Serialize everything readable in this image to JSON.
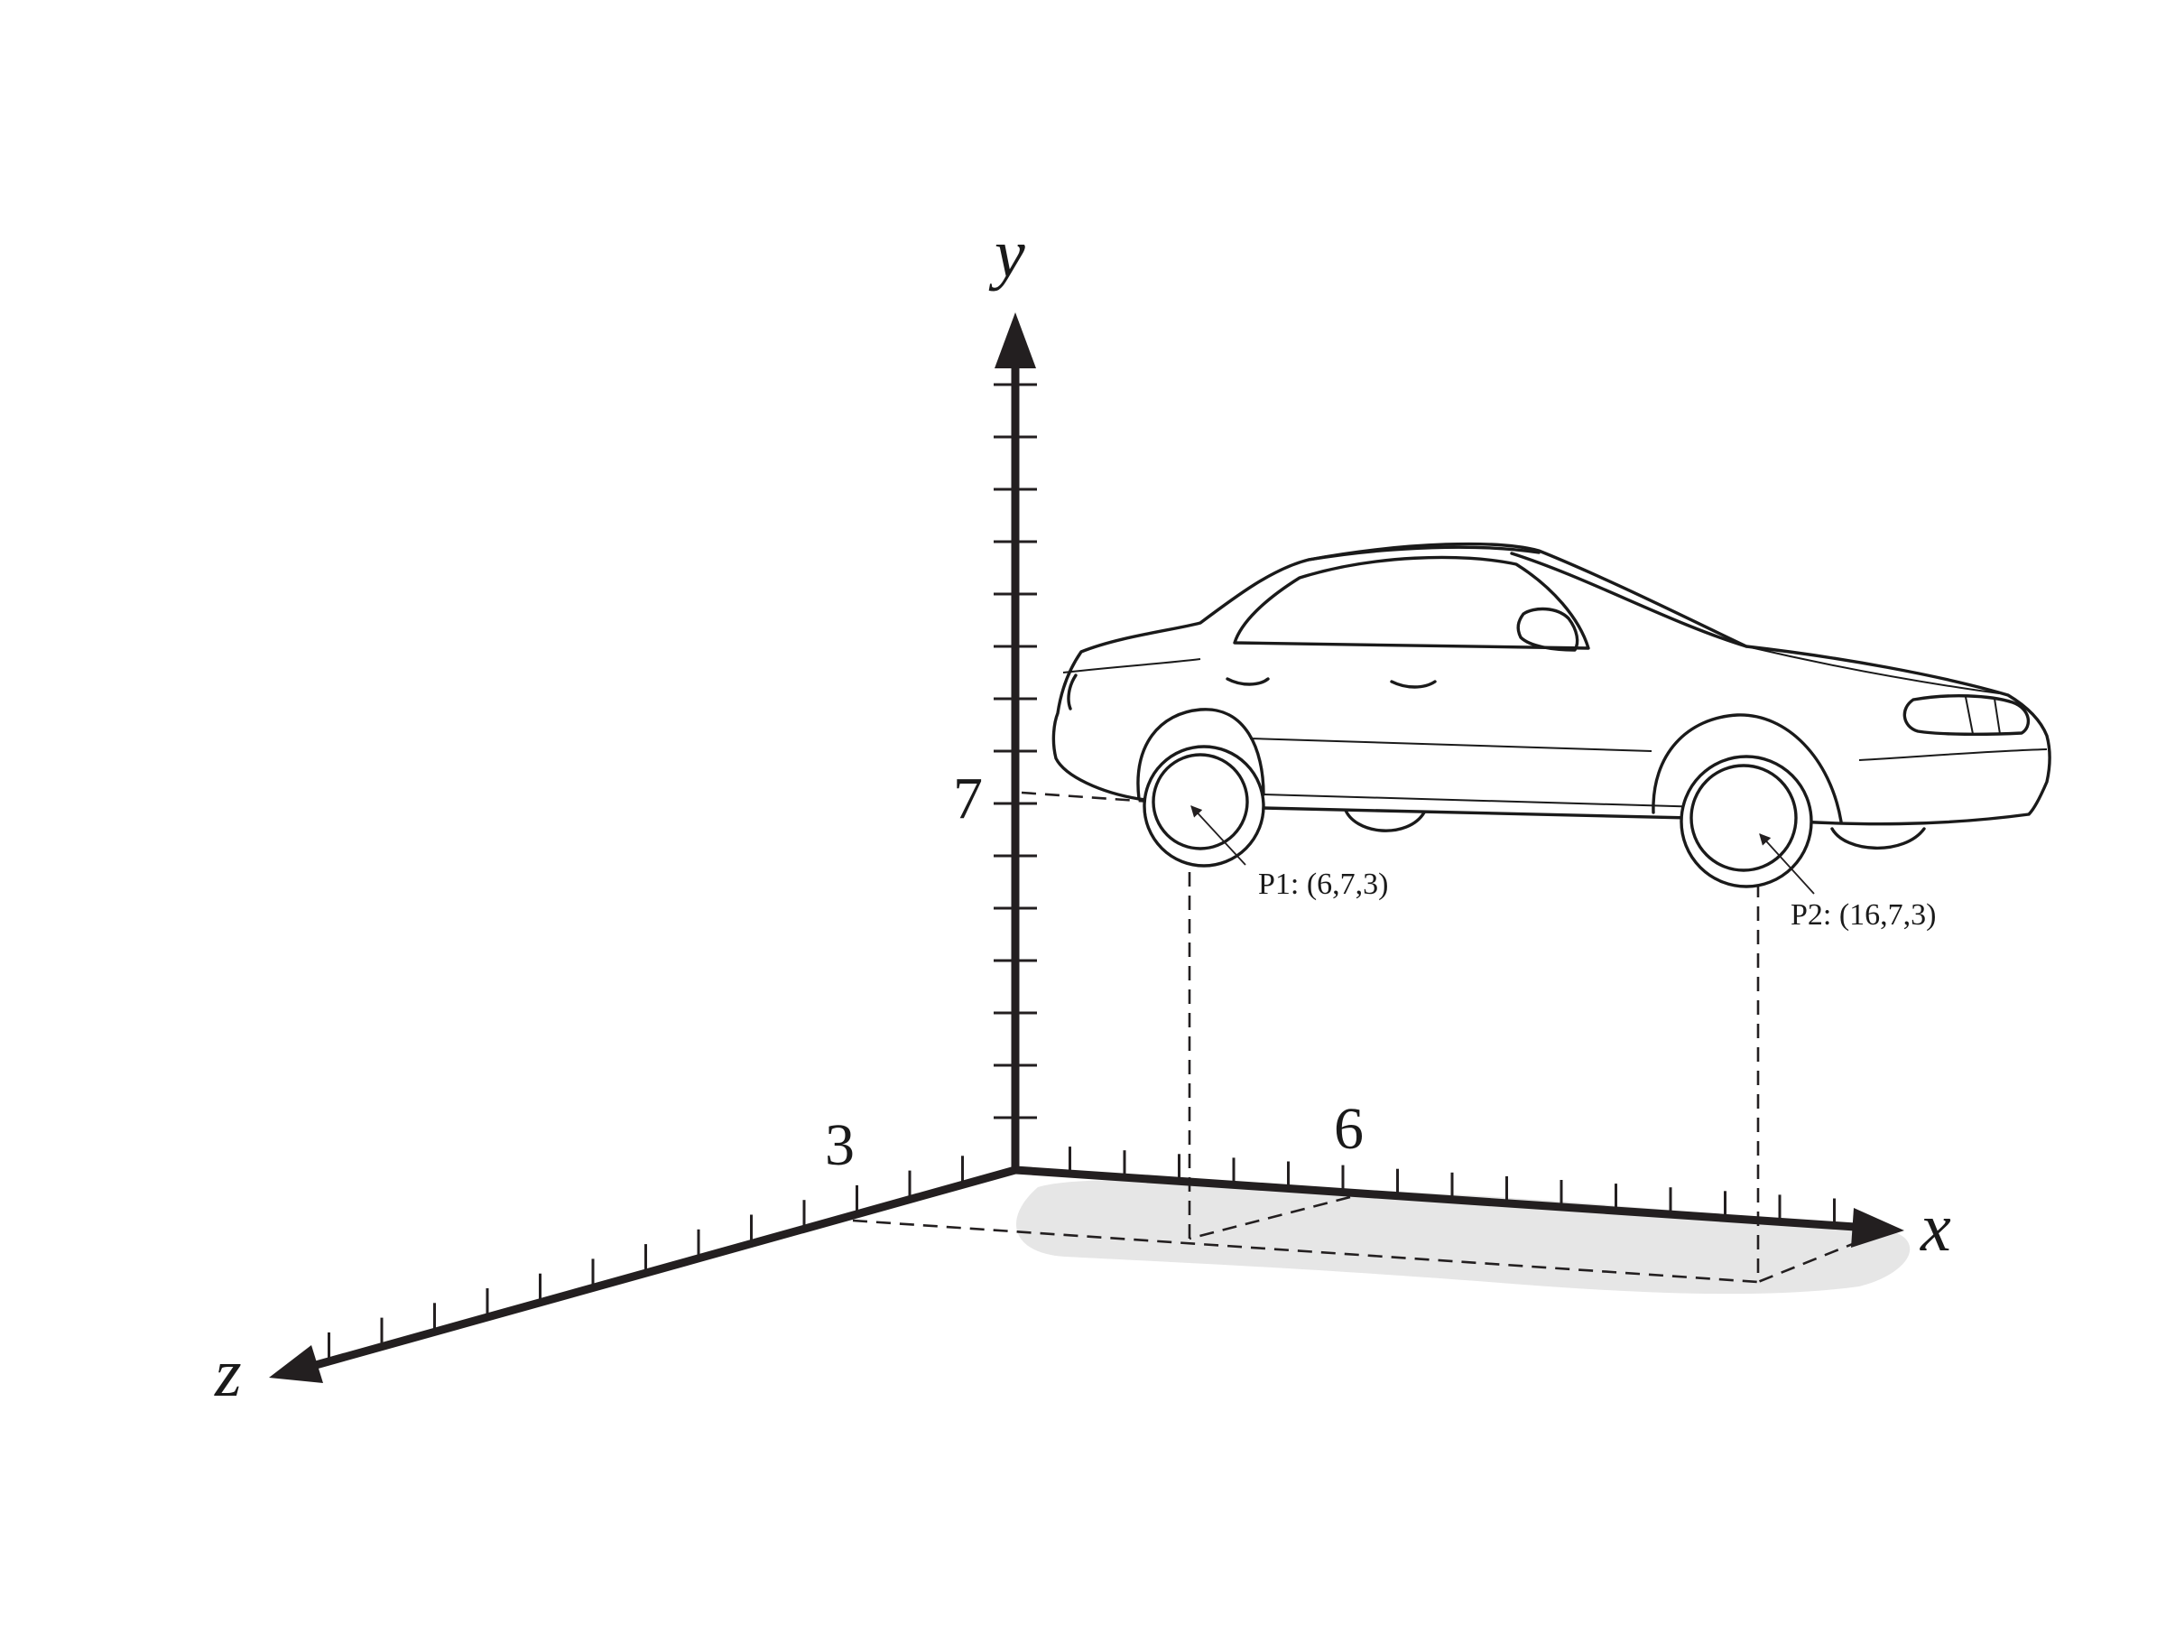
{
  "axes": {
    "x_label": "x",
    "y_label": "y",
    "z_label": "z"
  },
  "tick_labels": {
    "y_value": "7",
    "x_value": "6",
    "z_value": "3"
  },
  "points": [
    {
      "label": "P1: (6,7,3)",
      "x": 6,
      "y": 7,
      "z": 3
    },
    {
      "label": "P2: (16,7,3)",
      "x": 16,
      "y": 7,
      "z": 3
    }
  ],
  "colors": {
    "ink": "#231f20",
    "shadow": "#e6e6e6",
    "background": "#ffffff"
  }
}
